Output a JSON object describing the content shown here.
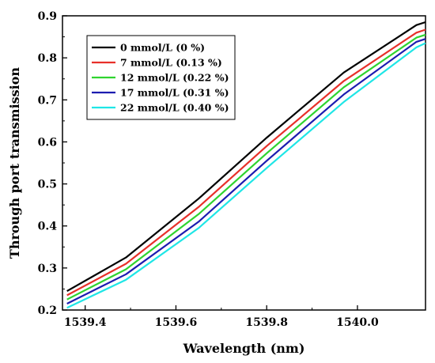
{
  "chart_data": {
    "type": "line",
    "xlabel": "Wavelength (nm)",
    "ylabel": "Through port transmission",
    "xlim": [
      1539.35,
      1540.15
    ],
    "ylim": [
      0.2,
      0.9
    ],
    "xticks": [
      1539.4,
      1539.6,
      1539.8,
      1540.0
    ],
    "xtick_labels": [
      "1539.4",
      "1539.6",
      "1539.8",
      "1540.0"
    ],
    "yticks": [
      0.2,
      0.3,
      0.4,
      0.5,
      0.6,
      0.7,
      0.8,
      0.9
    ],
    "ytick_labels": [
      "0.2",
      "0.3",
      "0.4",
      "0.5",
      "0.6",
      "0.7",
      "0.8",
      "0.9"
    ],
    "grid": false,
    "legend_position": "top-left",
    "x": [
      1539.36,
      1539.49,
      1539.65,
      1539.8,
      1539.97,
      1540.13,
      1540.15
    ],
    "series": [
      {
        "name": "0 mmol/L (0 %)",
        "color": "#000000",
        "values": [
          0.245,
          0.325,
          0.465,
          0.61,
          0.765,
          0.878,
          0.885
        ]
      },
      {
        "name": "7 mmol/L (0.13 %)",
        "color": "#e8302a",
        "values": [
          0.235,
          0.31,
          0.445,
          0.59,
          0.745,
          0.86,
          0.867
        ]
      },
      {
        "name": "12 mmol/L (0.22 %)",
        "color": "#2fd42f",
        "values": [
          0.225,
          0.297,
          0.428,
          0.573,
          0.73,
          0.848,
          0.855
        ]
      },
      {
        "name": "17 mmol/L (0.31 %)",
        "color": "#1c1cb0",
        "values": [
          0.215,
          0.285,
          0.41,
          0.555,
          0.713,
          0.838,
          0.845
        ]
      },
      {
        "name": "22 mmol/L (0.40 %)",
        "color": "#1fe6e6",
        "values": [
          0.205,
          0.272,
          0.395,
          0.538,
          0.695,
          0.825,
          0.835
        ]
      }
    ]
  }
}
